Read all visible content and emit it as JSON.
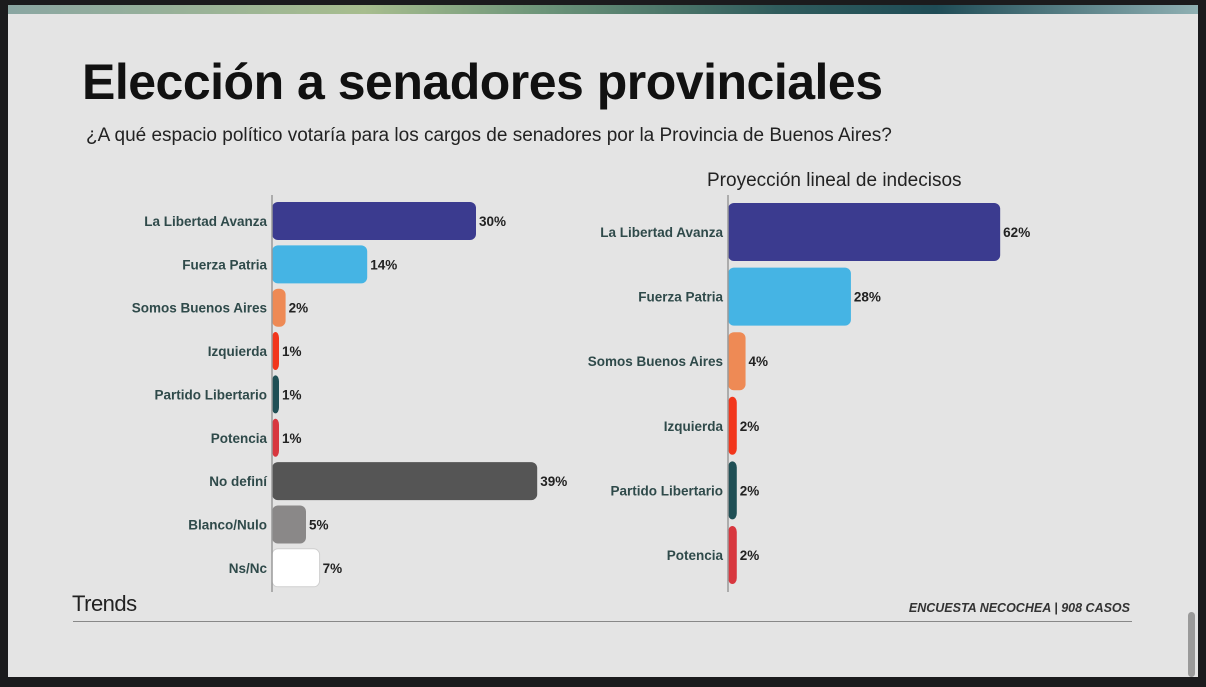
{
  "title": "Elección a senadores provinciales",
  "subtitle": "¿A qué espacio político votaría para los cargos de senadores por la Provincia de Buenos Aires?",
  "brand": "Trends",
  "source": "ENCUESTA NECOCHEA | 908 CASOS",
  "chart_data": [
    {
      "type": "bar",
      "orientation": "horizontal",
      "title": "",
      "categories": [
        "La Libertad Avanza",
        "Fuerza Patria",
        "Somos Buenos Aires",
        "Izquierda",
        "Partido Libertario",
        "Potencia",
        "No definí",
        "Blanco/Nulo",
        "Ns/Nc"
      ],
      "values": [
        30,
        14,
        2,
        1,
        1,
        1,
        39,
        5,
        7
      ],
      "labels": [
        "30%",
        "14%",
        "2%",
        "1%",
        "1%",
        "1%",
        "39%",
        "5%",
        "7%"
      ],
      "colors": [
        "#3b3b8f",
        "#45b4e4",
        "#ee8a55",
        "#f2361c",
        "#1f4f55",
        "#d8373f",
        "#555555",
        "#8a8888",
        "#ffffff"
      ],
      "unit": "%"
    },
    {
      "type": "bar",
      "orientation": "horizontal",
      "title": "Proyección lineal de indecisos",
      "categories": [
        "La Libertad Avanza",
        "Fuerza Patria",
        "Somos Buenos Aires",
        "Izquierda",
        "Partido Libertario",
        "Potencia"
      ],
      "values": [
        62,
        28,
        4,
        2,
        2,
        2
      ],
      "labels": [
        "62%",
        "28%",
        "4%",
        "2%",
        "2%",
        "2%"
      ],
      "colors": [
        "#3b3b8f",
        "#45b4e4",
        "#ee8a55",
        "#f2361c",
        "#1f4f55",
        "#d8373f"
      ],
      "unit": "%"
    }
  ]
}
